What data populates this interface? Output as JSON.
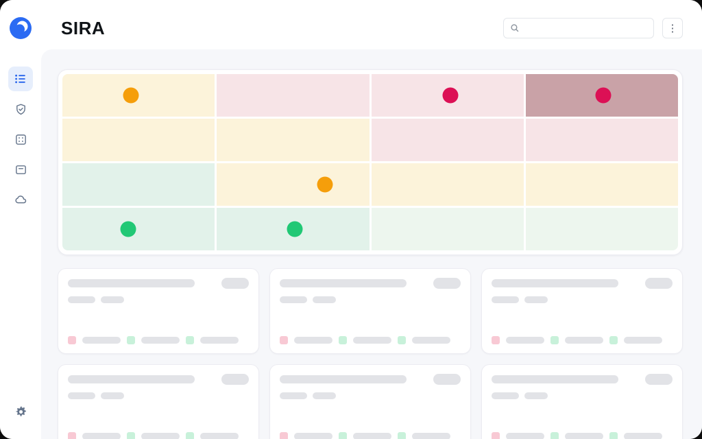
{
  "app": {
    "title": "SIRA"
  },
  "header": {
    "search": {
      "placeholder": "",
      "value": ""
    },
    "menu_button": "⋮"
  },
  "sidebar": {
    "items": [
      {
        "id": "list",
        "icon": "list-icon",
        "active": true
      },
      {
        "id": "shield",
        "icon": "shield-check-icon",
        "active": false
      },
      {
        "id": "grid",
        "icon": "grid-icon",
        "active": false
      },
      {
        "id": "panel",
        "icon": "panel-minus-icon",
        "active": false
      },
      {
        "id": "cloud",
        "icon": "cloud-icon",
        "active": false
      }
    ],
    "bottom_items": [
      {
        "id": "settings",
        "icon": "gear-icon"
      }
    ]
  },
  "theme": {
    "accent_blue": "#2563eb",
    "sidebar_active_bg": "#e6eefc",
    "icon_gray": "#64748b",
    "main_bg": "#f6f7fa",
    "skeleton_gray": "#e2e3e7"
  },
  "risk_matrix": {
    "rows": 4,
    "cols": 4,
    "cell_colors": {
      "yellow": "#fcf3da",
      "pink": "#f7e4e7",
      "maroon": "#c9a2a7",
      "mint": "#e2f2ea",
      "pale_green": "#edf6ee"
    },
    "cells": [
      "yellow",
      "pink",
      "pink",
      "maroon",
      "yellow",
      "yellow",
      "pink",
      "pink",
      "mint",
      "yellow",
      "yellow",
      "yellow",
      "mint",
      "mint",
      "pale_green",
      "pale_green"
    ],
    "dot_colors": {
      "orange": "#f59e0b",
      "red": "#dc1055",
      "green": "#21c875"
    },
    "dots": [
      {
        "row": 0,
        "col": 0,
        "color": "orange",
        "left_pct": 45
      },
      {
        "row": 0,
        "col": 2,
        "color": "red",
        "left_pct": 52
      },
      {
        "row": 0,
        "col": 3,
        "color": "red",
        "left_pct": 51
      },
      {
        "row": 2,
        "col": 1,
        "color": "orange",
        "left_pct": 71
      },
      {
        "row": 3,
        "col": 0,
        "color": "green",
        "left_pct": 43
      },
      {
        "row": 3,
        "col": 1,
        "color": "green",
        "left_pct": 51
      }
    ]
  },
  "skeleton_cards": {
    "count": 6,
    "columns": 3,
    "chip_colors": {
      "pink": "#f8c9d4",
      "green": "#c8f1da"
    },
    "footer_chips": [
      "pink",
      "green",
      "green"
    ]
  }
}
